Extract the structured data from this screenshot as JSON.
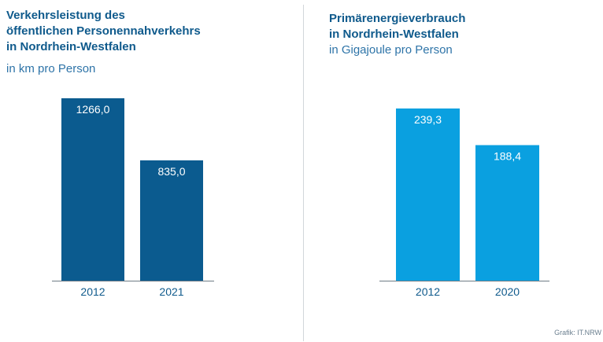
{
  "credit": "Grafik: IT.NRW",
  "colors": {
    "left_bar": "#0b5b8f",
    "right_bar": "#0aa0e0",
    "label_text": "#ffffff",
    "axis_line": "#6e7b85",
    "tick_text": "#0f5a8c"
  },
  "chart_data": [
    {
      "type": "bar",
      "title_lines": [
        "Verkehrsleistung des",
        "öffentlichen Personennahverkehrs",
        "in Nordrhein-Westfalen"
      ],
      "subtitle": "in km pro Person",
      "categories": [
        "2012",
        "2021"
      ],
      "values": [
        1266.0,
        835.0
      ],
      "value_labels": [
        "1266,0",
        "835,0"
      ],
      "ylim": [
        0,
        1266.0
      ],
      "grid": false
    },
    {
      "type": "bar",
      "title_lines": [
        "Primärenergieverbrauch",
        "in Nordrhein-Westfalen"
      ],
      "subtitle": "in Gigajoule pro Person",
      "categories": [
        "2012",
        "2020"
      ],
      "values": [
        239.3,
        188.4
      ],
      "value_labels": [
        "239,3",
        "188,4"
      ],
      "ylim": [
        0,
        253.5
      ],
      "grid": false
    }
  ]
}
